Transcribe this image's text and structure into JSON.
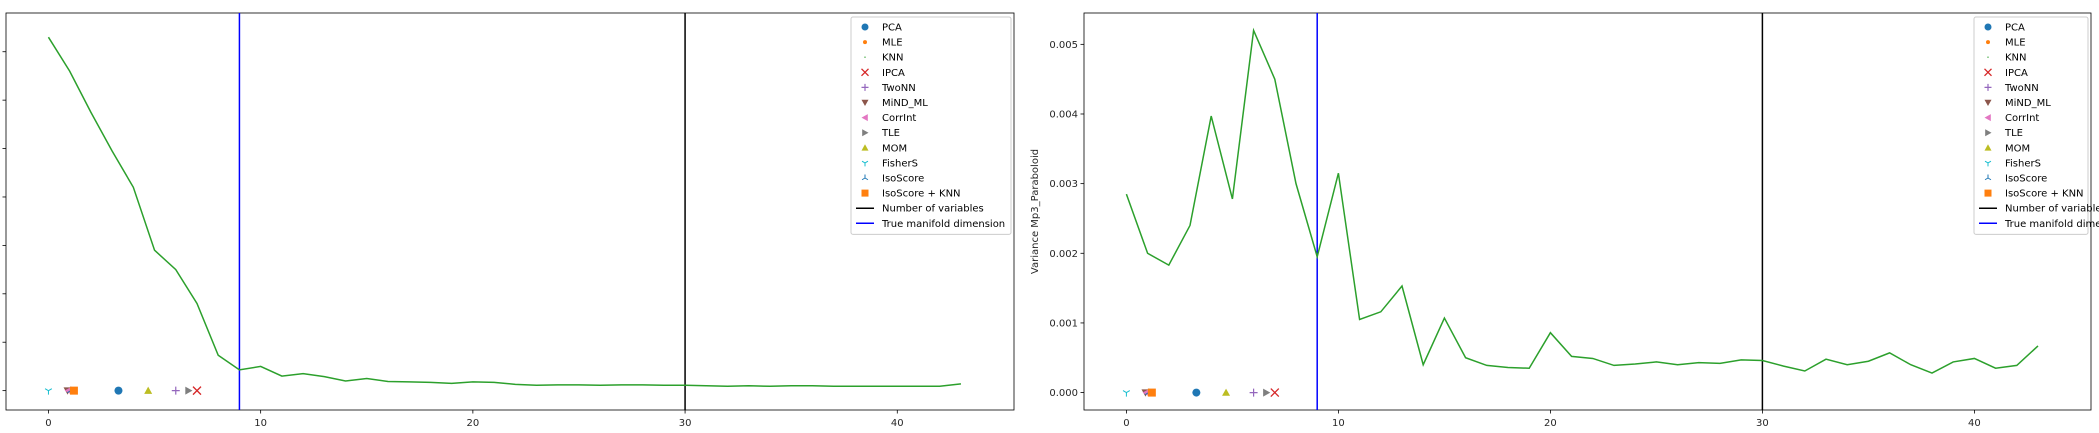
{
  "chart_data": [
    {
      "type": "line",
      "title": "",
      "xlabel": "",
      "ylabel": "",
      "xlim": [
        -2,
        45.5
      ],
      "ylim": [
        -0.04,
        0.78
      ],
      "xticks": [
        0,
        10,
        20,
        30,
        40
      ],
      "yticks": [],
      "grid": false,
      "legend_placement": "top-right",
      "curve": {
        "color": "#2ca02c",
        "x": [
          0,
          1,
          2,
          3,
          4,
          5,
          6,
          7,
          8,
          9,
          10,
          11,
          12,
          13,
          14,
          15,
          16,
          17,
          18,
          19,
          20,
          21,
          22,
          23,
          24,
          25,
          26,
          27,
          28,
          29,
          30,
          31,
          32,
          33,
          34,
          35,
          36,
          37,
          38,
          39,
          40,
          41,
          42,
          43
        ],
        "y": [
          0.73,
          0.66,
          0.575,
          0.495,
          0.42,
          0.29,
          0.25,
          0.18,
          0.073,
          0.043,
          0.05,
          0.03,
          0.035,
          0.029,
          0.02,
          0.025,
          0.019,
          0.018,
          0.017,
          0.015,
          0.018,
          0.017,
          0.013,
          0.011,
          0.012,
          0.012,
          0.011,
          0.012,
          0.012,
          0.011,
          0.011,
          0.01,
          0.009,
          0.01,
          0.009,
          0.01,
          0.01,
          0.009,
          0.009,
          0.009,
          0.009,
          0.009,
          0.009,
          0.014
        ]
      },
      "vlines": [
        {
          "x": 9,
          "color": "#0000ff",
          "label": "True manifold dimension"
        },
        {
          "x": 30,
          "color": "#000000",
          "label": "Number of variables"
        }
      ],
      "estimates": [
        {
          "name": "PCA",
          "x": 3.3,
          "color": "#1f77b4",
          "marker": "circle"
        },
        {
          "name": "MLE",
          "x": 1.0,
          "color": "#ff7f0e",
          "marker": "point"
        },
        {
          "name": "KNN",
          "x": 1.1,
          "color": "#2ca02c",
          "marker": "pixel"
        },
        {
          "name": "IPCA",
          "x": 7.0,
          "color": "#d62728",
          "marker": "x"
        },
        {
          "name": "TwoNN",
          "x": 6.0,
          "color": "#9467bd",
          "marker": "plus"
        },
        {
          "name": "MiND_ML",
          "x": 0.9,
          "color": "#8c564b",
          "marker": "triangle-down"
        },
        {
          "name": "CorrInt",
          "x": 0.95,
          "color": "#e377c2",
          "marker": "triangle-left"
        },
        {
          "name": "TLE",
          "x": 6.6,
          "color": "#7f7f7f",
          "marker": "triangle-right"
        },
        {
          "name": "MOM",
          "x": 4.7,
          "color": "#bcbd22",
          "marker": "triangle-up"
        },
        {
          "name": "FisherS",
          "x": 0.0,
          "color": "#17becf",
          "marker": "tri-down"
        },
        {
          "name": "IsoScore",
          "x": 1.05,
          "color": "#1f77b4",
          "marker": "tri-up"
        },
        {
          "name": "IsoScore + KNN",
          "x": 1.2,
          "color": "#ff7f0e",
          "marker": "square"
        }
      ]
    },
    {
      "type": "line",
      "title": "",
      "xlabel": "",
      "ylabel": "Variance Mp3_Paraboloid",
      "xlim": [
        -2,
        45.5
      ],
      "ylim": [
        -0.00025,
        0.00545
      ],
      "xticks": [
        0,
        10,
        20,
        30,
        40
      ],
      "yticks": [
        0.0,
        0.001,
        0.002,
        0.003,
        0.004,
        0.005
      ],
      "ytick_labels": [
        "0.000",
        "0.001",
        "0.002",
        "0.003",
        "0.004",
        "0.005"
      ],
      "grid": false,
      "legend_placement": "top-right",
      "curve": {
        "color": "#2ca02c",
        "x": [
          0,
          1,
          2,
          3,
          4,
          5,
          6,
          7,
          8,
          9,
          10,
          11,
          12,
          13,
          14,
          15,
          16,
          17,
          18,
          19,
          20,
          21,
          22,
          23,
          24,
          25,
          26,
          27,
          28,
          29,
          30,
          31,
          32,
          33,
          34,
          35,
          36,
          37,
          38,
          39,
          40,
          41,
          42,
          43
        ],
        "y": [
          0.00285,
          0.002,
          0.00183,
          0.0024,
          0.00397,
          0.00278,
          0.0052,
          0.0045,
          0.003,
          0.00195,
          0.00315,
          0.00105,
          0.00116,
          0.00153,
          0.0004,
          0.00107,
          0.0005,
          0.00039,
          0.00036,
          0.00035,
          0.00086,
          0.00052,
          0.00049,
          0.00039,
          0.00041,
          0.00044,
          0.0004,
          0.00043,
          0.00042,
          0.00047,
          0.00046,
          0.00038,
          0.00031,
          0.00048,
          0.0004,
          0.00045,
          0.00057,
          0.0004,
          0.00028,
          0.00044,
          0.00049,
          0.00035,
          0.00039,
          0.00067
        ]
      },
      "vlines": [
        {
          "x": 9,
          "color": "#0000ff",
          "label": "True manifold dimension"
        },
        {
          "x": 30,
          "color": "#000000",
          "label": "Number of variables"
        }
      ],
      "estimates": [
        {
          "name": "PCA",
          "x": 3.3,
          "color": "#1f77b4",
          "marker": "circle"
        },
        {
          "name": "MLE",
          "x": 1.0,
          "color": "#ff7f0e",
          "marker": "point"
        },
        {
          "name": "KNN",
          "x": 1.1,
          "color": "#2ca02c",
          "marker": "pixel"
        },
        {
          "name": "IPCA",
          "x": 7.0,
          "color": "#d62728",
          "marker": "x"
        },
        {
          "name": "TwoNN",
          "x": 6.0,
          "color": "#9467bd",
          "marker": "plus"
        },
        {
          "name": "MiND_ML",
          "x": 0.9,
          "color": "#8c564b",
          "marker": "triangle-down"
        },
        {
          "name": "CorrInt",
          "x": 0.95,
          "color": "#e377c2",
          "marker": "triangle-left"
        },
        {
          "name": "TLE",
          "x": 6.6,
          "color": "#7f7f7f",
          "marker": "triangle-right"
        },
        {
          "name": "MOM",
          "x": 4.7,
          "color": "#bcbd22",
          "marker": "triangle-up"
        },
        {
          "name": "FisherS",
          "x": 0.0,
          "color": "#17becf",
          "marker": "tri-down"
        },
        {
          "name": "IsoScore",
          "x": 1.05,
          "color": "#1f77b4",
          "marker": "tri-up"
        },
        {
          "name": "IsoScore + KNN",
          "x": 1.2,
          "color": "#ff7f0e",
          "marker": "square"
        }
      ]
    }
  ],
  "legend": {
    "entries": [
      "PCA",
      "MLE",
      "KNN",
      "IPCA",
      "TwoNN",
      "MiND_ML",
      "CorrInt",
      "TLE",
      "MOM",
      "FisherS",
      "IsoScore",
      "IsoScore + KNN",
      "Number of variables",
      "True manifold dimension"
    ]
  }
}
